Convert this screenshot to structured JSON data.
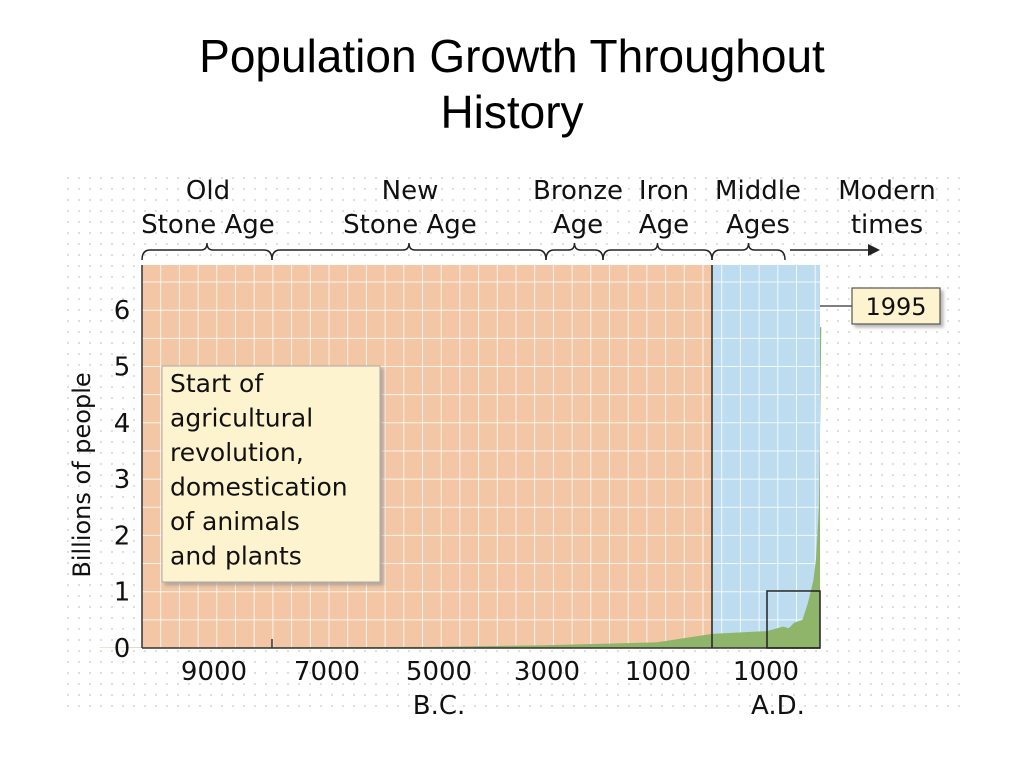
{
  "slide": {
    "title_line1": "Population Growth Throughout",
    "title_line2": "History"
  },
  "chart_data": {
    "type": "area",
    "title": "Population Growth Throughout History",
    "xlabel": "",
    "ylabel": "Billions of people",
    "ylim": [
      0,
      6.6
    ],
    "xlim": [
      -11000,
      2000
    ],
    "x_tick_labels": [
      {
        "x": -9000,
        "label": "9000"
      },
      {
        "x": -7000,
        "label": "7000"
      },
      {
        "x": -5000,
        "label": "5000",
        "sub": "B.C."
      },
      {
        "x": -3000,
        "label": "3000"
      },
      {
        "x": -1000,
        "label": "1000"
      },
      {
        "x": 1000,
        "label": "1000",
        "sub": "A.D."
      }
    ],
    "y_ticks": [
      0,
      1,
      2,
      3,
      4,
      5,
      6
    ],
    "grid": true,
    "series": [
      {
        "values": [
          {
            "x": -11000,
            "y": 0.005
          },
          {
            "x": -8000,
            "y": 0.01
          },
          {
            "x": -5000,
            "y": 0.02
          },
          {
            "x": -3000,
            "y": 0.05
          },
          {
            "x": -1000,
            "y": 0.1
          },
          {
            "x": 1,
            "y": 0.25
          },
          {
            "x": 1000,
            "y": 0.3
          },
          {
            "x": 1300,
            "y": 0.38
          },
          {
            "x": 1400,
            "y": 0.35
          },
          {
            "x": 1500,
            "y": 0.45
          },
          {
            "x": 1650,
            "y": 0.5
          },
          {
            "x": 1750,
            "y": 0.8
          },
          {
            "x": 1850,
            "y": 1.2
          },
          {
            "x": 1900,
            "y": 1.6
          },
          {
            "x": 1950,
            "y": 2.5
          },
          {
            "x": 1975,
            "y": 4.0
          },
          {
            "x": 1995,
            "y": 5.7
          }
        ]
      }
    ],
    "eras": [
      {
        "line1": "Old",
        "line2": "Stone Age",
        "start": -11000,
        "end": -8000
      },
      {
        "line1": "New",
        "line2": "Stone Age",
        "start": -8000,
        "end": -3000
      },
      {
        "line1": "Bronze",
        "line2": "Age",
        "start": -3000,
        "end": -2000
      },
      {
        "line1": "Iron",
        "line2": "Age",
        "start": -2000,
        "end": 0
      },
      {
        "line1": "Middle",
        "line2": "Ages",
        "start": 0,
        "end": 1500
      },
      {
        "line1": "Modern",
        "line2": "times",
        "start": 1500,
        "end": 2000
      }
    ],
    "annotations": {
      "callout_lines": [
        "Start of",
        "agricultural",
        "revolution,",
        "domestication",
        "of animals",
        "and plants"
      ],
      "year_label": "1995"
    },
    "colors": {
      "bc_region": "#f3c6a5",
      "ad_region": "#bddcf0",
      "area_fill": "#8fb56a",
      "callout_bg": "#fdf4cf",
      "year_bg": "#fdf4cf"
    }
  }
}
